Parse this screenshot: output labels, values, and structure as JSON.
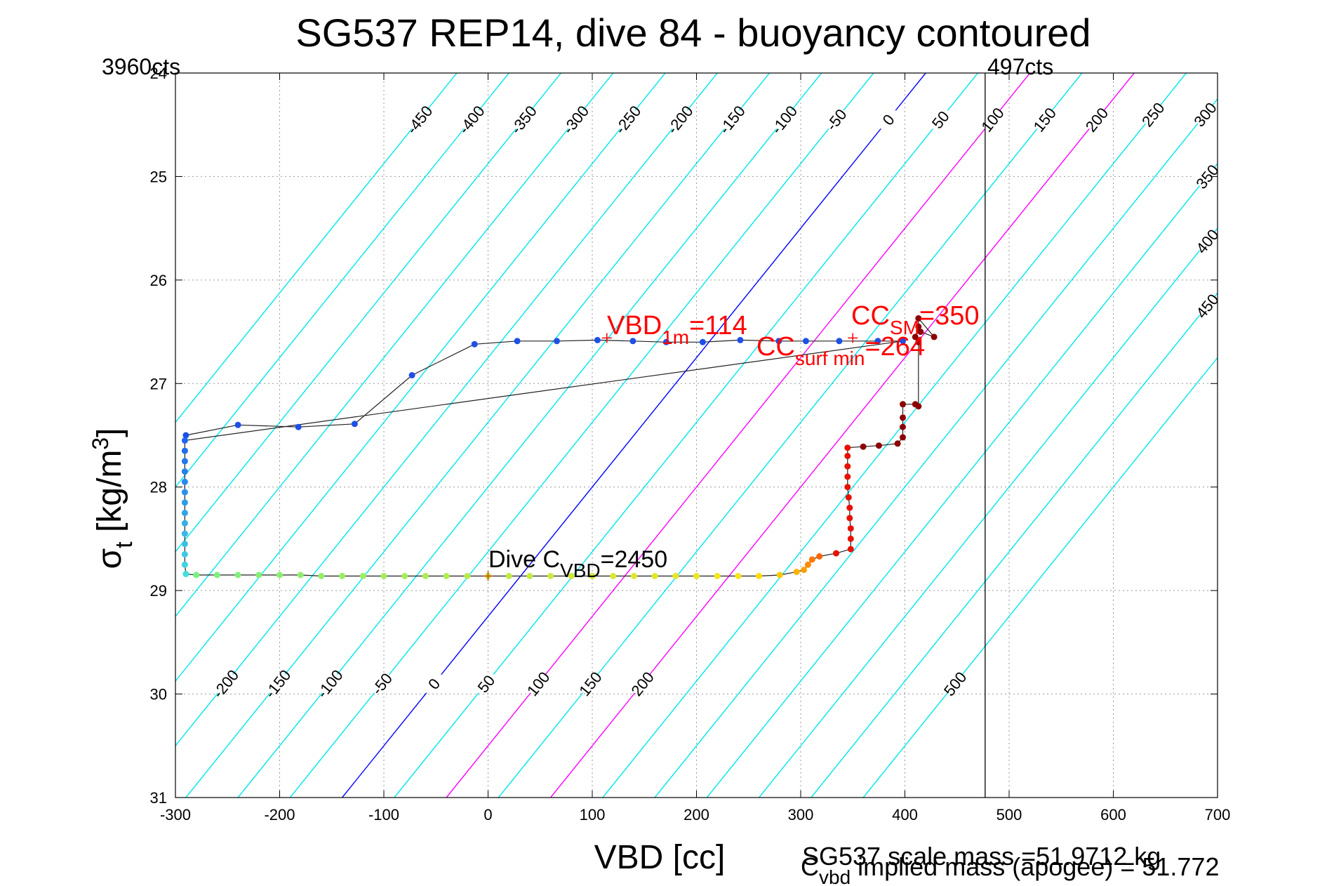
{
  "chart_data": {
    "type": "scatter",
    "title": "SG537 REP14, dive 84 - buoyancy contoured",
    "xlabel": "VBD [cc]",
    "ylabel_main": "σ",
    "ylabel_sub": "t",
    "ylabel_unit_pre": " [kg/m",
    "ylabel_unit_sup": "3",
    "ylabel_unit_post": "]",
    "xlim": [
      -300,
      700
    ],
    "ylim": [
      24,
      31
    ],
    "y_reversed": true,
    "grid": true,
    "x_ticks": [
      "-300",
      "-200",
      "-100",
      "0",
      "100",
      "200",
      "300",
      "400",
      "500",
      "600",
      "700"
    ],
    "y_ticks": [
      "24",
      "25",
      "26",
      "27",
      "28",
      "29",
      "30",
      "31"
    ],
    "corner_left": "3960cts",
    "corner_right": "497cts",
    "vline_x": 477,
    "contour_slope_cc_per_sigma": 80,
    "contours": [
      {
        "value": -450,
        "x_at_24": -30,
        "color": "#00e5ee",
        "labels": [
          "-450",
          "-450"
        ]
      },
      {
        "value": -400,
        "x_at_24": 20,
        "color": "#00e5ee",
        "labels": [
          "-400",
          "-400"
        ]
      },
      {
        "value": -350,
        "x_at_24": 70,
        "color": "#00e5ee",
        "labels": [
          "-350",
          "-350"
        ]
      },
      {
        "value": -300,
        "x_at_24": 120,
        "color": "#00e5ee",
        "labels": [
          "-300",
          "-300"
        ]
      },
      {
        "value": -250,
        "x_at_24": 170,
        "color": "#00e5ee",
        "labels": [
          "-250",
          "-250"
        ]
      },
      {
        "value": -200,
        "x_at_24": 220,
        "color": "#00e5ee",
        "labels": [
          "-200",
          "-200"
        ]
      },
      {
        "value": -150,
        "x_at_24": 270,
        "color": "#00e5ee",
        "labels": [
          "-150",
          "-150"
        ]
      },
      {
        "value": -100,
        "x_at_24": 320,
        "color": "#00e5ee",
        "labels": [
          "-100",
          "-100"
        ]
      },
      {
        "value": -50,
        "x_at_24": 370,
        "color": "#00e5ee",
        "labels": [
          "-50",
          "-50"
        ]
      },
      {
        "value": 0,
        "x_at_24": 420,
        "color": "#0000ff",
        "labels": [
          "0",
          "0"
        ]
      },
      {
        "value": 50,
        "x_at_24": 470,
        "color": "#00e5ee",
        "labels": [
          "50",
          "50"
        ]
      },
      {
        "value": 100,
        "x_at_24": 520,
        "color": "#ff00ff",
        "labels": [
          "100",
          "100"
        ]
      },
      {
        "value": 150,
        "x_at_24": 570,
        "color": "#00e5ee",
        "labels": [
          "150",
          "150"
        ]
      },
      {
        "value": 200,
        "x_at_24": 620,
        "color": "#ff00ff",
        "labels": [
          "200",
          "200"
        ]
      },
      {
        "value": 250,
        "x_at_24": 670,
        "color": "#00e5ee",
        "labels": [
          "250"
        ]
      },
      {
        "value": 300,
        "x_at_24": 720,
        "color": "#00e5ee",
        "labels": [
          "300"
        ]
      },
      {
        "value": 350,
        "x_at_24": 770,
        "color": "#00e5ee",
        "labels": [
          "350"
        ]
      },
      {
        "value": 400,
        "x_at_24": 820,
        "color": "#00e5ee",
        "labels": [
          "400"
        ]
      },
      {
        "value": 450,
        "x_at_24": 870,
        "color": "#00e5ee",
        "labels": [
          "450"
        ]
      },
      {
        "value": 500,
        "x_at_24": 920,
        "color": "#00e5ee",
        "labels": [
          "500",
          "500"
        ]
      }
    ],
    "series_dive": [
      [
        -290,
        27.5
      ],
      [
        -240,
        27.4
      ],
      [
        -182,
        27.42
      ],
      [
        -128,
        27.39
      ],
      [
        -73,
        26.92
      ],
      [
        -13,
        26.62
      ],
      [
        28,
        26.59
      ],
      [
        66,
        26.59
      ],
      [
        105,
        26.58
      ],
      [
        139,
        26.59
      ],
      [
        171,
        26.6
      ],
      [
        206,
        26.6
      ],
      [
        242,
        26.58
      ],
      [
        279,
        26.59
      ],
      [
        305,
        26.59
      ],
      [
        337,
        26.59
      ],
      [
        374,
        26.59
      ],
      [
        398,
        26.59
      ],
      [
        -291,
        27.55
      ],
      [
        -291,
        27.65
      ],
      [
        -291,
        27.75
      ],
      [
        -291,
        27.85
      ],
      [
        -291,
        27.95
      ],
      [
        -291,
        28.05
      ],
      [
        -291,
        28.15
      ],
      [
        -291,
        28.25
      ],
      [
        -291,
        28.35
      ],
      [
        -291,
        28.45
      ],
      [
        -291,
        28.55
      ],
      [
        -291,
        28.65
      ],
      [
        -291,
        28.75
      ],
      [
        -290,
        28.84
      ],
      [
        -280,
        28.85
      ],
      [
        -260,
        28.85
      ],
      [
        -240,
        28.85
      ],
      [
        -220,
        28.85
      ],
      [
        -200,
        28.85
      ],
      [
        -180,
        28.85
      ],
      [
        -160,
        28.86
      ],
      [
        -140,
        28.86
      ],
      [
        -120,
        28.86
      ],
      [
        -100,
        28.86
      ],
      [
        -80,
        28.86
      ],
      [
        -60,
        28.86
      ],
      [
        -40,
        28.86
      ],
      [
        -20,
        28.86
      ],
      [
        0,
        28.86
      ],
      [
        20,
        28.86
      ],
      [
        40,
        28.86
      ],
      [
        60,
        28.86
      ],
      [
        80,
        28.86
      ],
      [
        100,
        28.86
      ],
      [
        120,
        28.86
      ],
      [
        140,
        28.86
      ],
      [
        160,
        28.86
      ],
      [
        180,
        28.86
      ],
      [
        200,
        28.86
      ],
      [
        220,
        28.86
      ],
      [
        240,
        28.86
      ],
      [
        260,
        28.86
      ],
      [
        280,
        28.85
      ],
      [
        296,
        28.82
      ],
      [
        303,
        28.8
      ],
      [
        307,
        28.75
      ],
      [
        311,
        28.7
      ],
      [
        318,
        28.67
      ],
      [
        334,
        28.64
      ],
      [
        348,
        28.6
      ],
      [
        348,
        28.5
      ],
      [
        348,
        28.4
      ],
      [
        347,
        28.3
      ],
      [
        347,
        28.2
      ],
      [
        346,
        28.1
      ],
      [
        345,
        28.0
      ],
      [
        345,
        27.9
      ],
      [
        345,
        27.8
      ],
      [
        345,
        27.7
      ],
      [
        345,
        27.62
      ],
      [
        360,
        27.61
      ],
      [
        375,
        27.6
      ],
      [
        393,
        27.58
      ],
      [
        398,
        27.52
      ],
      [
        398,
        27.42
      ],
      [
        398,
        27.33
      ],
      [
        398,
        27.2
      ],
      [
        410,
        27.2
      ],
      [
        413,
        27.22
      ],
      [
        413,
        26.6
      ],
      [
        410,
        26.55
      ],
      [
        413,
        26.45
      ],
      [
        413,
        26.37
      ],
      [
        428,
        26.55
      ],
      [
        415,
        26.5
      ]
    ],
    "markers": [
      {
        "x": 114,
        "y": 26.56,
        "color": "#ff0000"
      },
      {
        "x": 350,
        "y": 26.56,
        "color": "#ff0000"
      },
      {
        "x": 0,
        "y": 28.86,
        "color": "#cc4400"
      }
    ],
    "annotations": {
      "vbd1m": {
        "main": "VBD",
        "sub": "1m",
        "post": "=114"
      },
      "ccsm": {
        "main": "CC",
        "sub": "SM",
        "post": "=350"
      },
      "ccsurf": {
        "main": "CC",
        "sub": "surf min",
        "post": "=264"
      },
      "dive_cvbd": {
        "main": "Dive C",
        "sub": "VBD",
        "post": "=2450"
      }
    },
    "footer_scale_mass": "SG537 scale mass =51.9712 kg",
    "footer_implied_main": "C",
    "footer_implied_sub": "vbd",
    "footer_implied_post": " implied mass (apogee) = 51.772"
  }
}
